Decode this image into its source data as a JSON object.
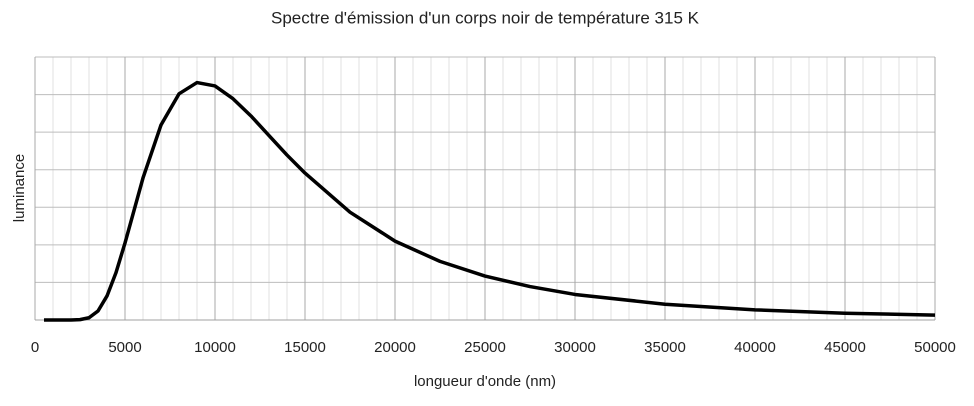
{
  "chart_data": {
    "type": "line",
    "title": "Spectre d'émission d'un corps noir de température 315 K",
    "x_label": "longueur d'onde (nm)",
    "y_label": "luminance",
    "xlim": [
      0,
      50000
    ],
    "xticks": [
      0,
      5000,
      10000,
      15000,
      20000,
      25000,
      30000,
      35000,
      40000,
      45000,
      50000
    ],
    "ylim": [
      0,
      7
    ],
    "yticks": [
      0,
      1,
      2,
      3,
      4,
      5,
      6,
      7
    ],
    "show_ytick_labels": false,
    "grid": true,
    "minor_grid": true,
    "x": [
      500,
      1000,
      2000,
      2500,
      3000,
      3500,
      4000,
      4500,
      5000,
      6000,
      7000,
      8000,
      9000,
      10000,
      11000,
      12000,
      13000,
      14000,
      15000,
      17500,
      20000,
      22500,
      25000,
      27500,
      30000,
      35000,
      40000,
      45000,
      50000
    ],
    "series": [
      {
        "name": "luminance",
        "color": "#000000",
        "values": [
          0,
          0,
          0,
          0.01,
          0.06,
          0.24,
          0.64,
          1.26,
          2.05,
          3.78,
          5.19,
          6.02,
          6.32,
          6.23,
          5.89,
          5.43,
          4.91,
          4.39,
          3.91,
          2.87,
          2.1,
          1.56,
          1.17,
          0.89,
          0.68,
          0.42,
          0.27,
          0.18,
          0.13
        ]
      }
    ]
  }
}
